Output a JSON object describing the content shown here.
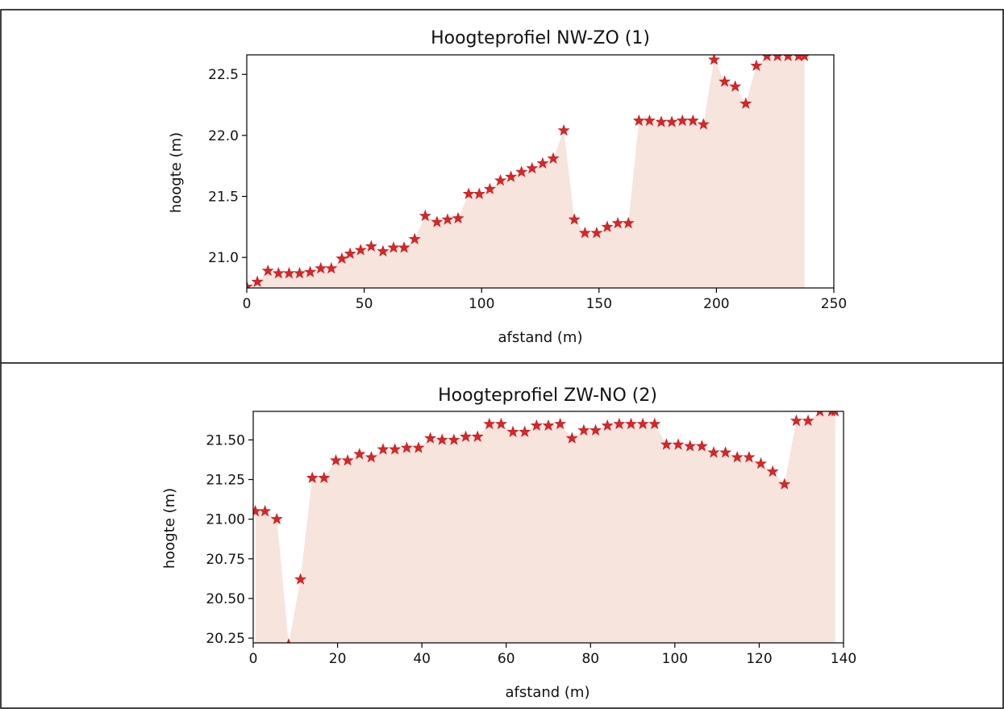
{
  "chart_data": [
    {
      "type": "area",
      "title": "Hoogteprofiel NW-ZO (1)",
      "xlabel": "afstand (m)",
      "ylabel": "hoogte (m)",
      "xlim": [
        0,
        250
      ],
      "ylim": [
        20.75,
        22.66
      ],
      "xticks": [
        "0",
        "50",
        "100",
        "150",
        "200",
        "250"
      ],
      "xtick_values": [
        0,
        50,
        100,
        150,
        200,
        250
      ],
      "yticks": [
        "21.0",
        "21.5",
        "22.0",
        "22.5"
      ],
      "ytick_values": [
        21.0,
        21.5,
        22.0,
        22.5
      ],
      "grid": false,
      "marker": "star",
      "marker_color": "#d62728",
      "fill_color": "#f6e4dd",
      "series": [
        {
          "x": [
            0,
            4.5,
            9,
            13.5,
            18,
            22.5,
            27,
            31.5,
            36,
            40.5,
            44,
            48.5,
            53,
            58,
            62.5,
            67,
            71.5,
            76,
            81,
            85.5,
            90,
            94.5,
            99,
            103.5,
            108,
            112.5,
            117,
            121.5,
            126,
            130.5,
            135,
            139.5,
            144,
            149,
            153.5,
            158,
            162.5,
            167,
            171.5,
            176.5,
            181,
            185.5,
            190,
            194.5,
            199,
            203.5,
            208,
            212.5,
            217,
            221.5,
            226,
            230.5,
            235,
            237.5
          ],
          "y": [
            20.76,
            20.8,
            20.89,
            20.87,
            20.87,
            20.87,
            20.88,
            20.91,
            20.91,
            20.99,
            21.03,
            21.06,
            21.09,
            21.05,
            21.08,
            21.08,
            21.15,
            21.34,
            21.29,
            21.31,
            21.32,
            21.52,
            21.52,
            21.56,
            21.63,
            21.66,
            21.7,
            21.73,
            21.77,
            21.81,
            22.04,
            21.31,
            21.2,
            21.2,
            21.25,
            21.28,
            21.28,
            22.12,
            22.12,
            22.11,
            22.11,
            22.12,
            22.12,
            22.09,
            22.62,
            22.44,
            22.4,
            22.26,
            22.57,
            22.65,
            22.65,
            22.65,
            22.65,
            22.65
          ]
        }
      ]
    },
    {
      "type": "area",
      "title": "Hoogteprofiel ZW-NO (2)",
      "xlabel": "afstand (m)",
      "ylabel": "hoogte (m)",
      "xlim": [
        0,
        140
      ],
      "ylim": [
        20.22,
        21.68
      ],
      "xticks": [
        "0",
        "20",
        "40",
        "60",
        "80",
        "100",
        "120",
        "140"
      ],
      "xtick_values": [
        0,
        20,
        40,
        60,
        80,
        100,
        120,
        140
      ],
      "yticks": [
        "20.25",
        "20.50",
        "20.75",
        "21.00",
        "21.25",
        "21.50"
      ],
      "ytick_values": [
        20.25,
        20.5,
        20.75,
        21.0,
        21.25,
        21.5
      ],
      "grid": false,
      "marker": "star",
      "marker_color": "#d62728",
      "fill_color": "#f6e4dd",
      "series": [
        {
          "x": [
            0.5,
            2.8,
            5.6,
            8.4,
            11.2,
            14,
            16.8,
            19.6,
            22.4,
            25.2,
            28,
            30.8,
            33.6,
            36.4,
            39.2,
            42,
            44.8,
            47.6,
            50.4,
            53.2,
            56,
            58.8,
            61.6,
            64.4,
            67.2,
            70,
            72.8,
            75.6,
            78.4,
            81.2,
            84,
            86.8,
            89.6,
            92.4,
            95.2,
            98,
            100.8,
            103.6,
            106.4,
            109.2,
            112,
            114.8,
            117.6,
            120.4,
            123.2,
            126,
            128.8,
            131.6,
            134.4,
            137.2,
            138
          ],
          "y": [
            21.05,
            21.05,
            21.0,
            20.21,
            20.62,
            21.26,
            21.26,
            21.37,
            21.37,
            21.41,
            21.39,
            21.44,
            21.44,
            21.45,
            21.45,
            21.51,
            21.5,
            21.5,
            21.52,
            21.52,
            21.6,
            21.6,
            21.55,
            21.55,
            21.59,
            21.59,
            21.6,
            21.51,
            21.56,
            21.56,
            21.59,
            21.6,
            21.6,
            21.6,
            21.6,
            21.47,
            21.47,
            21.46,
            21.46,
            21.42,
            21.42,
            21.39,
            21.39,
            21.35,
            21.3,
            21.22,
            21.62,
            21.62,
            21.68,
            21.68,
            21.68
          ]
        }
      ]
    }
  ]
}
